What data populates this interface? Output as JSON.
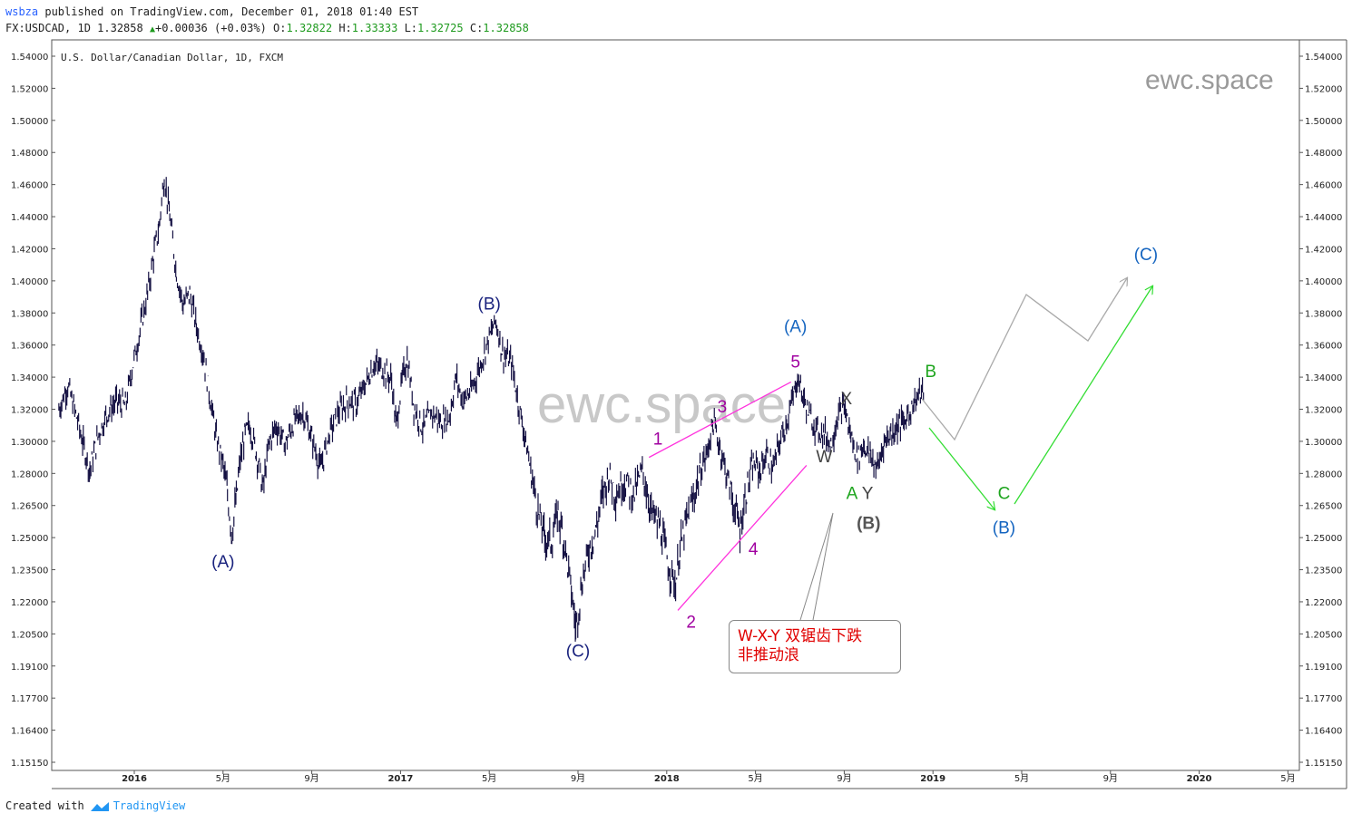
{
  "header": {
    "author": "wsbza",
    "published_text": " published on TradingView.com, December 01, 2018 01:40 EST",
    "symbol_line": "FX:USDCAD, 1D 1.32858",
    "change": "+0.00036 (+0.03%)",
    "open_label": "O:",
    "open": "1.32822",
    "high_label": "H:",
    "high": "1.33333",
    "low_label": "L:",
    "low": "1.32725",
    "close_label": "C:",
    "close": "1.32858"
  },
  "chart_data": {
    "type": "line",
    "title": "U.S. Dollar/Canadian Dollar, 1D, FXCM",
    "watermark": "ewc.space",
    "ylim": [
      1.1515,
      1.549
    ],
    "y_ticks": [
      "1.54000",
      "1.52000",
      "1.50000",
      "1.48000",
      "1.46000",
      "1.44000",
      "1.42000",
      "1.40000",
      "1.38000",
      "1.36000",
      "1.34000",
      "1.32000",
      "1.30000",
      "1.28000",
      "1.26500",
      "1.25000",
      "1.23500",
      "1.22000",
      "1.20500",
      "1.19100",
      "1.17700",
      "1.16400",
      "1.15150"
    ],
    "x_ticks": [
      {
        "label": "2016",
        "t": 0.0,
        "bold": true
      },
      {
        "label": "5月",
        "t": 4.0
      },
      {
        "label": "9月",
        "t": 8.0
      },
      {
        "label": "2017",
        "t": 12.0,
        "bold": true
      },
      {
        "label": "5月",
        "t": 16.0
      },
      {
        "label": "9月",
        "t": 20.0
      },
      {
        "label": "2018",
        "t": 24.0,
        "bold": true
      },
      {
        "label": "5月",
        "t": 28.0
      },
      {
        "label": "9月",
        "t": 32.0
      },
      {
        "label": "2019",
        "t": 36.0,
        "bold": true
      },
      {
        "label": "5月",
        "t": 40.0
      },
      {
        "label": "9月",
        "t": 44.0
      },
      {
        "label": "2020",
        "t": 48.0,
        "bold": true
      },
      {
        "label": "5月",
        "t": 52.0
      }
    ],
    "x_range_months": [
      -3.6,
      56.5
    ],
    "series": [
      {
        "values": [
          [
            -3.4,
            1.32
          ],
          [
            -3.0,
            1.335
          ],
          [
            -2.6,
            1.315
          ],
          [
            -2.3,
            1.298
          ],
          [
            -2.0,
            1.282
          ],
          [
            -1.6,
            1.305
          ],
          [
            -1.2,
            1.318
          ],
          [
            -0.8,
            1.325
          ],
          [
            -0.4,
            1.322
          ],
          [
            -0.1,
            1.345
          ],
          [
            0.3,
            1.372
          ],
          [
            0.6,
            1.392
          ],
          [
            0.9,
            1.418
          ],
          [
            1.1,
            1.432
          ],
          [
            1.35,
            1.465
          ],
          [
            1.6,
            1.44
          ],
          [
            1.9,
            1.405
          ],
          [
            2.2,
            1.385
          ],
          [
            2.5,
            1.392
          ],
          [
            2.8,
            1.372
          ],
          [
            3.1,
            1.355
          ],
          [
            3.4,
            1.328
          ],
          [
            3.7,
            1.302
          ],
          [
            4.0,
            1.286
          ],
          [
            4.2,
            1.27
          ],
          [
            4.4,
            1.252
          ],
          [
            4.6,
            1.268
          ],
          [
            4.8,
            1.29
          ],
          [
            5.0,
            1.305
          ],
          [
            5.2,
            1.31
          ],
          [
            5.5,
            1.293
          ],
          [
            5.8,
            1.272
          ],
          [
            6.1,
            1.3
          ],
          [
            6.4,
            1.31
          ],
          [
            6.8,
            1.298
          ],
          [
            7.2,
            1.312
          ],
          [
            7.6,
            1.318
          ],
          [
            8.0,
            1.302
          ],
          [
            8.4,
            1.283
          ],
          [
            8.8,
            1.305
          ],
          [
            9.2,
            1.318
          ],
          [
            9.6,
            1.325
          ],
          [
            10.0,
            1.323
          ],
          [
            10.4,
            1.335
          ],
          [
            10.8,
            1.348
          ],
          [
            11.2,
            1.345
          ],
          [
            11.6,
            1.338
          ],
          [
            11.8,
            1.31
          ],
          [
            12.1,
            1.34
          ],
          [
            12.3,
            1.352
          ],
          [
            12.6,
            1.322
          ],
          [
            13.0,
            1.308
          ],
          [
            13.4,
            1.318
          ],
          [
            13.8,
            1.312
          ],
          [
            14.2,
            1.315
          ],
          [
            14.5,
            1.34
          ],
          [
            14.8,
            1.325
          ],
          [
            15.2,
            1.332
          ],
          [
            15.6,
            1.348
          ],
          [
            16.0,
            1.365
          ],
          [
            16.3,
            1.375
          ],
          [
            16.6,
            1.355
          ],
          [
            17.0,
            1.349
          ],
          [
            17.3,
            1.325
          ],
          [
            17.6,
            1.303
          ],
          [
            17.9,
            1.28
          ],
          [
            18.2,
            1.262
          ],
          [
            18.5,
            1.25
          ],
          [
            18.8,
            1.248
          ],
          [
            19.1,
            1.262
          ],
          [
            19.4,
            1.247
          ],
          [
            19.7,
            1.225
          ],
          [
            19.9,
            1.208
          ],
          [
            20.2,
            1.23
          ],
          [
            20.5,
            1.245
          ],
          [
            20.8,
            1.253
          ],
          [
            21.1,
            1.27
          ],
          [
            21.4,
            1.28
          ],
          [
            21.7,
            1.27
          ],
          [
            22.1,
            1.277
          ],
          [
            22.5,
            1.27
          ],
          [
            22.9,
            1.282
          ],
          [
            23.3,
            1.262
          ],
          [
            23.7,
            1.255
          ],
          [
            24.1,
            1.236
          ],
          [
            24.4,
            1.228
          ],
          [
            24.6,
            1.245
          ],
          [
            24.9,
            1.258
          ],
          [
            25.2,
            1.268
          ],
          [
            25.5,
            1.282
          ],
          [
            25.8,
            1.292
          ],
          [
            26.1,
            1.312
          ],
          [
            26.4,
            1.296
          ],
          [
            26.7,
            1.28
          ],
          [
            27.0,
            1.266
          ],
          [
            27.3,
            1.254
          ],
          [
            27.6,
            1.272
          ],
          [
            27.9,
            1.286
          ],
          [
            28.2,
            1.282
          ],
          [
            28.5,
            1.292
          ],
          [
            28.8,
            1.283
          ],
          [
            29.1,
            1.3
          ],
          [
            29.4,
            1.312
          ],
          [
            29.7,
            1.327
          ],
          [
            29.9,
            1.34
          ],
          [
            30.2,
            1.325
          ],
          [
            30.5,
            1.314
          ],
          [
            30.8,
            1.307
          ],
          [
            31.1,
            1.305
          ],
          [
            31.4,
            1.298
          ],
          [
            31.7,
            1.315
          ],
          [
            32.0,
            1.322
          ],
          [
            32.3,
            1.303
          ],
          [
            32.6,
            1.29
          ],
          [
            32.9,
            1.298
          ],
          [
            33.2,
            1.29
          ],
          [
            33.5,
            1.283
          ],
          [
            33.8,
            1.3
          ],
          [
            34.1,
            1.305
          ],
          [
            34.4,
            1.31
          ],
          [
            34.7,
            1.312
          ],
          [
            35.0,
            1.32
          ],
          [
            35.3,
            1.328
          ],
          [
            35.6,
            1.332
          ]
        ]
      }
    ],
    "wave_labels": [
      {
        "text": "(A)",
        "t": 4.0,
        "y": 1.236,
        "color": "#1a237e"
      },
      {
        "text": "(B)",
        "t": 16.0,
        "y": 1.382,
        "color": "#1a237e"
      },
      {
        "text": "(C)",
        "t": 20.0,
        "y": 1.195,
        "color": "#1a237e"
      },
      {
        "text": "1",
        "t": 23.6,
        "y": 1.298,
        "color": "#a000a0"
      },
      {
        "text": "2",
        "t": 25.1,
        "y": 1.208,
        "color": "#a000a0"
      },
      {
        "text": "3",
        "t": 26.5,
        "y": 1.318,
        "color": "#a000a0"
      },
      {
        "text": "4",
        "t": 27.9,
        "y": 1.242,
        "color": "#a000a0"
      },
      {
        "text": "5",
        "t": 29.8,
        "y": 1.346,
        "color": "#a000a0"
      },
      {
        "text": "(A)",
        "t": 29.8,
        "y": 1.368,
        "color": "#1565c0"
      },
      {
        "text": "W",
        "t": 31.1,
        "y": 1.287,
        "color": "#444444"
      },
      {
        "text": "X",
        "t": 32.1,
        "y": 1.323,
        "color": "#444444"
      },
      {
        "text": "A",
        "t": 32.35,
        "y": 1.268,
        "color": "#1ea51e"
      },
      {
        "text": "Y",
        "t": 33.05,
        "y": 1.268,
        "color": "#444444"
      },
      {
        "text": "(B)",
        "t": 33.1,
        "y": 1.254,
        "color": "#555555",
        "bold": true
      },
      {
        "text": "B",
        "t": 35.9,
        "y": 1.34,
        "color": "#1ea51e"
      },
      {
        "text": "C",
        "t": 39.2,
        "y": 1.268,
        "color": "#1ea51e"
      },
      {
        "text": "(B)",
        "t": 39.2,
        "y": 1.252,
        "color": "#1565c0"
      },
      {
        "text": "(C)",
        "t": 45.6,
        "y": 1.413,
        "color": "#1565c0"
      }
    ],
    "annotation_text_line1": "W-X-Y 双锯齿下跌",
    "annotation_text_line2": "非推动浪",
    "colors": {
      "candles": "#141042",
      "pink": "#ff33dd",
      "green": "#33dd33",
      "gray": "#aaaaaa",
      "note": "#e00000"
    }
  },
  "footer": {
    "created": "Created with",
    "brand": "TradingView"
  }
}
